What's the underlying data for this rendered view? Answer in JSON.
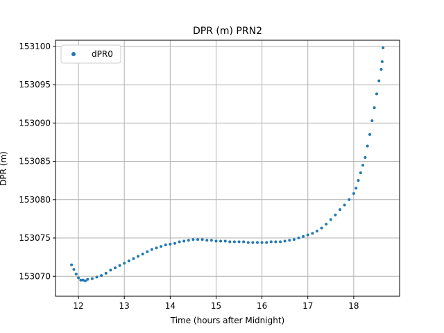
{
  "chart_data": {
    "type": "scatter",
    "title": "DPR (m) PRN2",
    "xlabel": "Time (hours after Midnight)",
    "ylabel": "DPR (m)",
    "xlim": [
      11.5,
      19.0
    ],
    "ylim": [
      153067.4,
      153100.8
    ],
    "xticks": [
      12,
      13,
      14,
      15,
      16,
      17,
      18
    ],
    "yticks": [
      153070,
      153075,
      153080,
      153085,
      153090,
      153095,
      153100
    ],
    "grid": true,
    "legend_position": "top-left",
    "series_color": "#1f77b4",
    "series": [
      {
        "name": "dPR0",
        "x": [
          11.85,
          11.9,
          11.95,
          12.0,
          12.05,
          12.1,
          12.15,
          12.2,
          12.3,
          12.4,
          12.5,
          12.6,
          12.7,
          12.8,
          12.9,
          13.0,
          13.1,
          13.2,
          13.3,
          13.4,
          13.5,
          13.6,
          13.7,
          13.8,
          13.9,
          14.0,
          14.1,
          14.2,
          14.3,
          14.4,
          14.5,
          14.6,
          14.7,
          14.8,
          14.9,
          15.0,
          15.1,
          15.2,
          15.3,
          15.4,
          15.5,
          15.6,
          15.7,
          15.8,
          15.9,
          16.0,
          16.1,
          16.2,
          16.3,
          16.4,
          16.5,
          16.6,
          16.7,
          16.8,
          16.9,
          17.0,
          17.1,
          17.2,
          17.3,
          17.4,
          17.5,
          17.6,
          17.7,
          17.8,
          17.9,
          18.0,
          18.05,
          18.1,
          18.15,
          18.2,
          18.25,
          18.3,
          18.35,
          18.4,
          18.45,
          18.5,
          18.55,
          18.6,
          18.62,
          18.64
        ],
        "y": [
          153071.5,
          153070.9,
          153070.3,
          153069.8,
          153069.5,
          153069.5,
          153069.4,
          153069.6,
          153069.7,
          153069.9,
          153070.1,
          153070.4,
          153070.8,
          153071.1,
          153071.4,
          153071.7,
          153072.0,
          153072.3,
          153072.6,
          153072.9,
          153073.2,
          153073.5,
          153073.7,
          153073.9,
          153074.1,
          153074.2,
          153074.3,
          153074.5,
          153074.6,
          153074.7,
          153074.8,
          153074.8,
          153074.8,
          153074.7,
          153074.7,
          153074.6,
          153074.6,
          153074.6,
          153074.5,
          153074.5,
          153074.5,
          153074.5,
          153074.4,
          153074.4,
          153074.4,
          153074.4,
          153074.4,
          153074.5,
          153074.5,
          153074.5,
          153074.6,
          153074.7,
          153074.8,
          153075.0,
          153075.2,
          153075.4,
          153075.6,
          153075.9,
          153076.3,
          153076.8,
          153077.4,
          153078.0,
          153078.7,
          153079.3,
          153080.0,
          153080.8,
          153081.5,
          153082.5,
          153083.5,
          153084.5,
          153085.5,
          153087.0,
          153088.5,
          153090.3,
          153092.0,
          153093.8,
          153095.5,
          153097.0,
          153098.0,
          153099.8
        ]
      }
    ]
  }
}
